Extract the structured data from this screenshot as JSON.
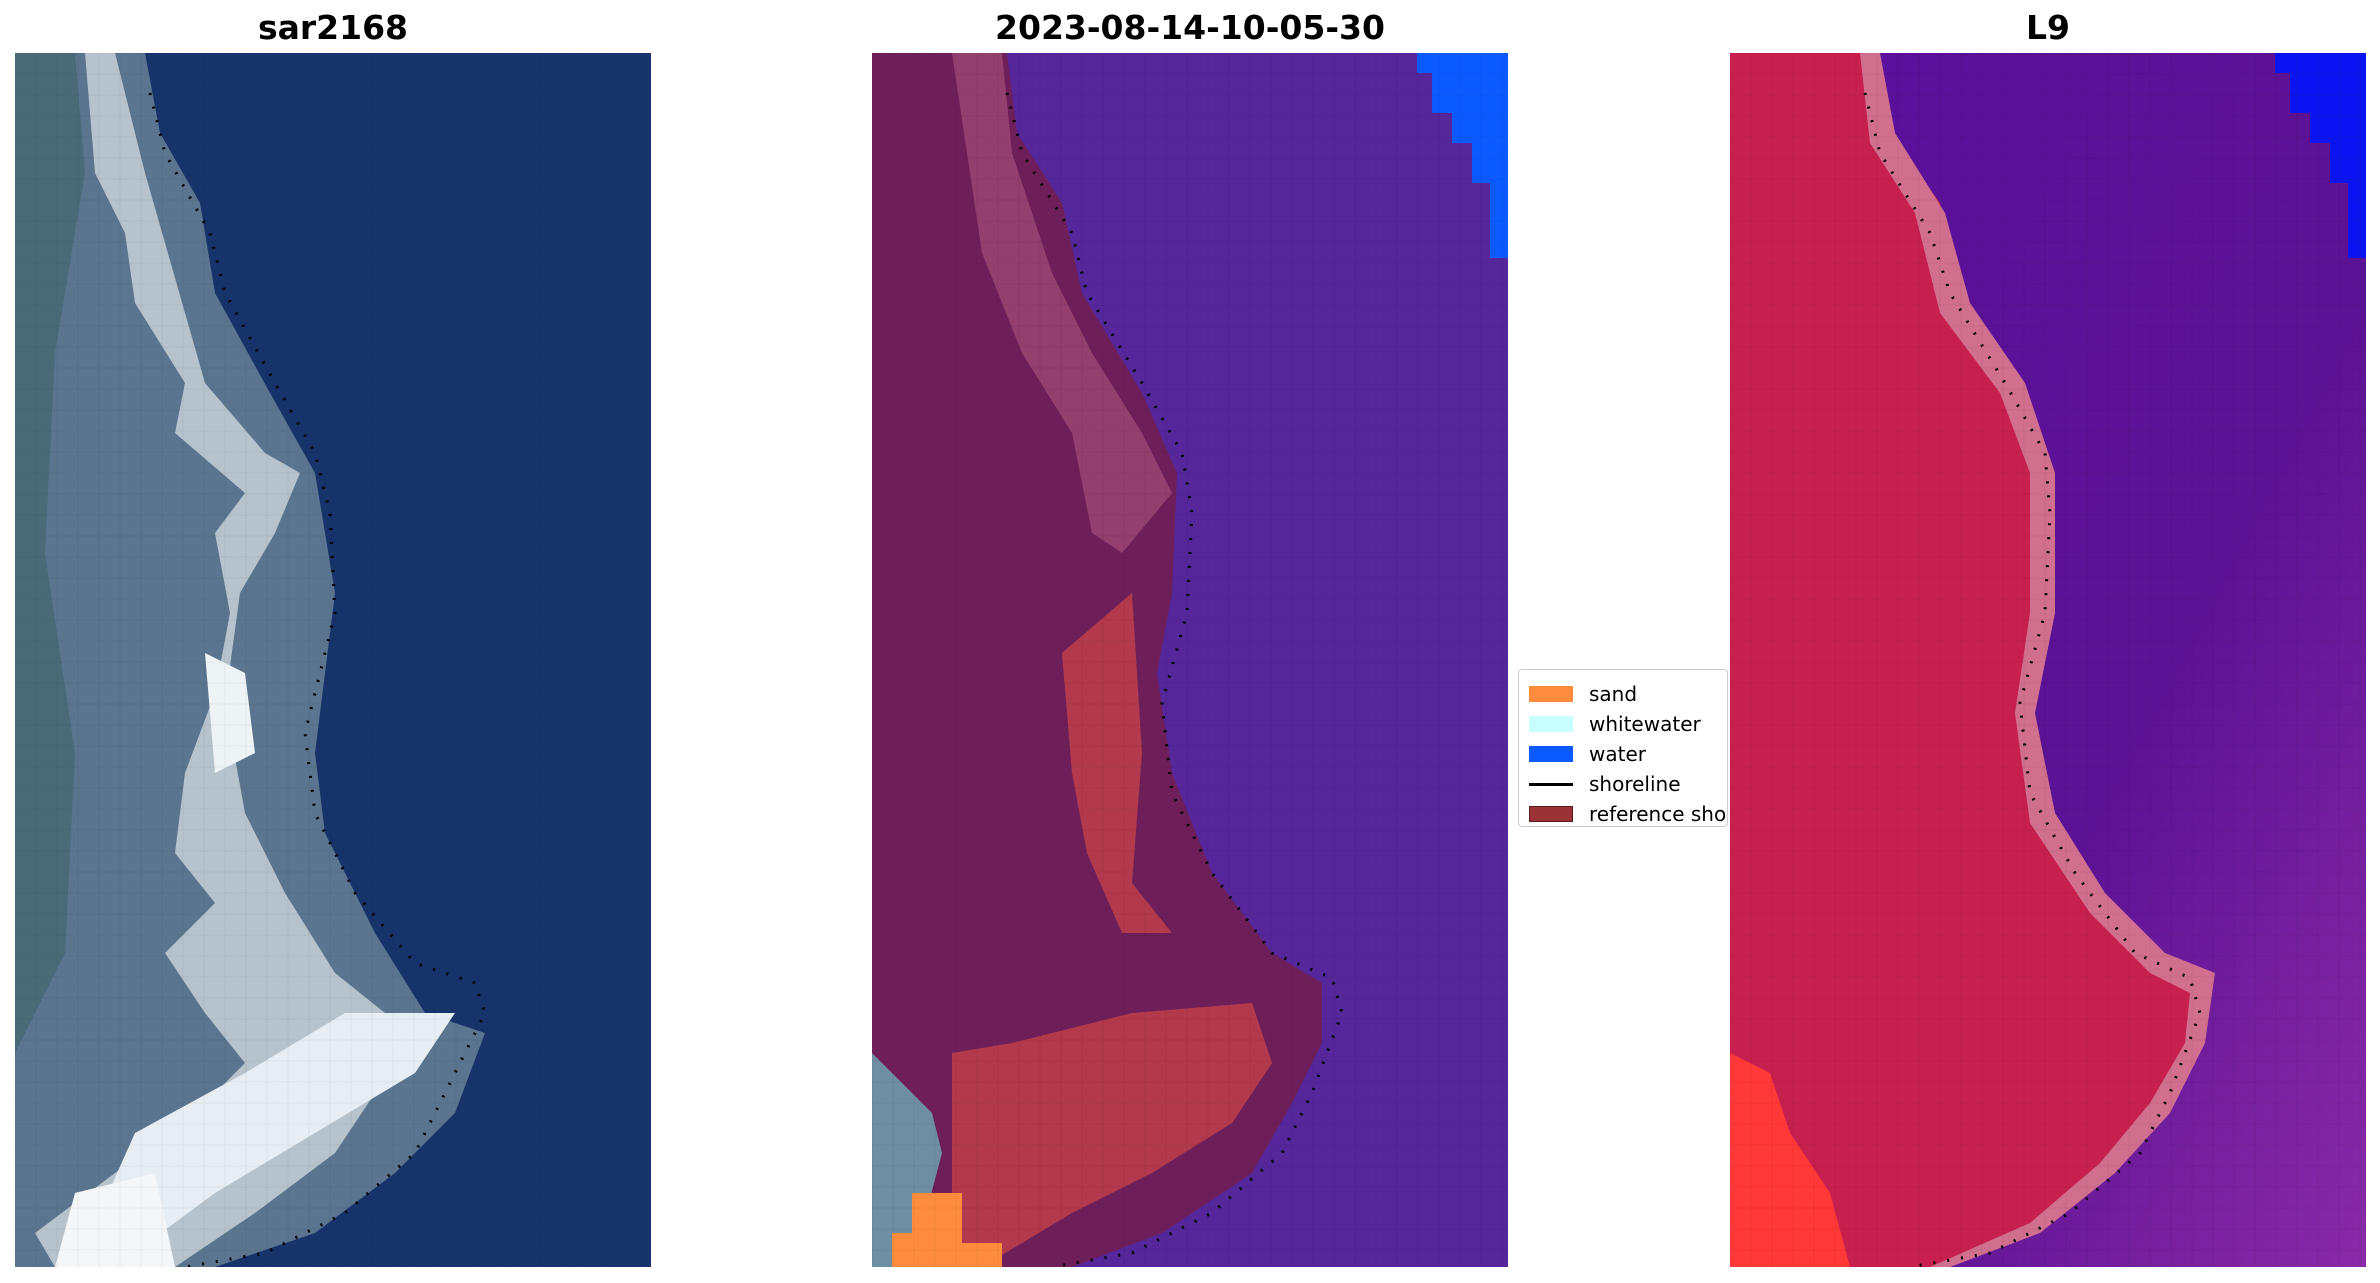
{
  "panels": [
    {
      "title": "sar2168"
    },
    {
      "title": "2023-08-14-10-05-30"
    },
    {
      "title": "L9"
    }
  ],
  "legend": {
    "items": [
      {
        "label": "sand",
        "kind": "patch",
        "color": "#ff8c3c"
      },
      {
        "label": "whitewater",
        "kind": "patch",
        "color": "#c8ffff"
      },
      {
        "label": "water",
        "kind": "patch",
        "color": "#0a5aff"
      },
      {
        "label": "shoreline",
        "kind": "line",
        "color": "#000000"
      },
      {
        "label": "reference shoreline buffer",
        "kind": "patch",
        "color": "#9b3236"
      }
    ]
  },
  "colors": {
    "rgb_water": "#17346a",
    "rgb_land": "#5b7590",
    "rgb_whitewater": "#e6eef4",
    "class_land": "#6e1f5a",
    "class_water": "#55279a",
    "class_buffer": "#b23a4c",
    "class_water_patch": "#0a5aff",
    "class_sand": "#ff8c3c",
    "mndwi_land": "#c8204e",
    "mndwi_water": "#5a0f9c",
    "mndwi_blue": "#0a14f0"
  }
}
